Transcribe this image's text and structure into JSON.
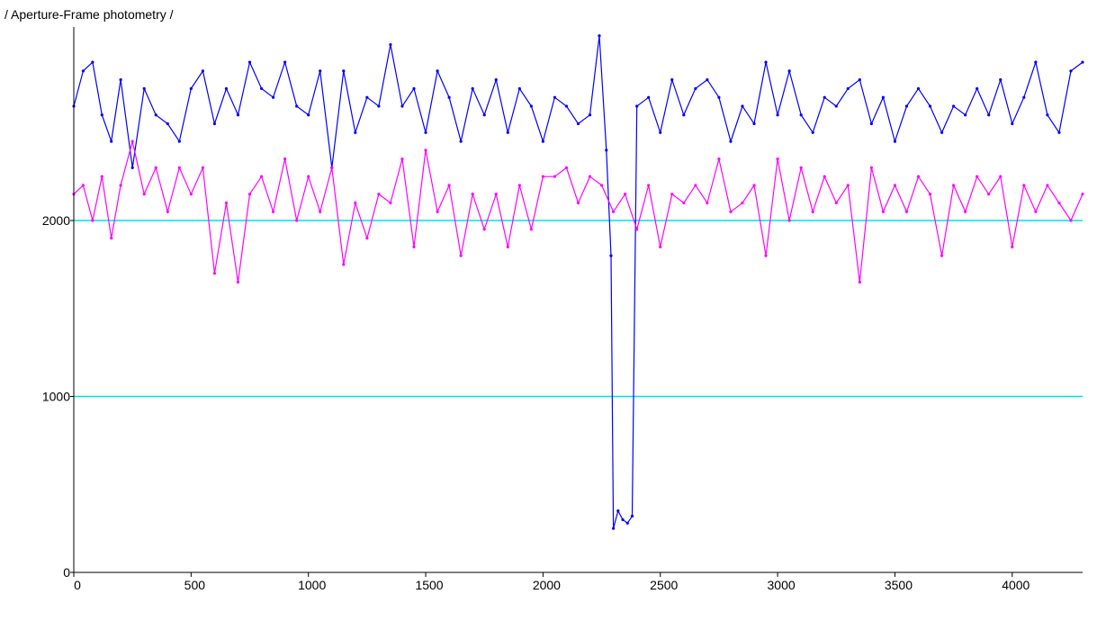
{
  "chart_data": {
    "type": "line",
    "title": "/ Aperture-Frame photometry /",
    "xlabel": "",
    "ylabel": "",
    "xlim": [
      0,
      4300
    ],
    "ylim": [
      0,
      3100
    ],
    "x_ticks": [
      0,
      500,
      1000,
      1500,
      2000,
      2500,
      3000,
      3500,
      4000
    ],
    "y_ticks": [
      0,
      1000,
      2000
    ],
    "reference_lines": [
      {
        "y": 2000,
        "color": "#00e0e0"
      },
      {
        "y": 1000,
        "color": "#00e0e0"
      }
    ],
    "series": [
      {
        "color": "#0000ff",
        "x": [
          0,
          40,
          80,
          120,
          160,
          200,
          250,
          300,
          350,
          400,
          450,
          500,
          550,
          600,
          650,
          700,
          750,
          800,
          850,
          900,
          950,
          1000,
          1050,
          1100,
          1150,
          1200,
          1250,
          1300,
          1350,
          1400,
          1450,
          1500,
          1550,
          1600,
          1650,
          1700,
          1750,
          1800,
          1850,
          1900,
          1950,
          2000,
          2050,
          2100,
          2150,
          2200,
          2240,
          2270,
          2290,
          2300,
          2320,
          2340,
          2360,
          2380,
          2400,
          2450,
          2500,
          2550,
          2600,
          2650,
          2700,
          2750,
          2800,
          2850,
          2900,
          2950,
          3000,
          3050,
          3100,
          3150,
          3200,
          3250,
          3300,
          3350,
          3400,
          3450,
          3500,
          3550,
          3600,
          3650,
          3700,
          3750,
          3800,
          3850,
          3900,
          3950,
          4000,
          4050,
          4100,
          4150,
          4200,
          4250,
          4300
        ],
        "y": [
          2650,
          2850,
          2900,
          2600,
          2450,
          2800,
          2300,
          2750,
          2600,
          2550,
          2450,
          2750,
          2850,
          2550,
          2750,
          2600,
          2900,
          2750,
          2700,
          2900,
          2650,
          2600,
          2850,
          2300,
          2850,
          2500,
          2700,
          2650,
          3000,
          2650,
          2750,
          2500,
          2850,
          2700,
          2450,
          2750,
          2600,
          2800,
          2500,
          2750,
          2650,
          2450,
          2700,
          2650,
          2550,
          2600,
          3050,
          2400,
          1800,
          250,
          350,
          300,
          280,
          320,
          2650,
          2700,
          2500,
          2800,
          2600,
          2750,
          2800,
          2700,
          2450,
          2650,
          2550,
          2900,
          2600,
          2850,
          2600,
          2500,
          2700,
          2650,
          2750,
          2800,
          2550,
          2700,
          2450,
          2650,
          2750,
          2650,
          2500,
          2650,
          2600,
          2750,
          2600,
          2800,
          2550,
          2700,
          2900,
          2600,
          2500,
          2850,
          2900
        ]
      },
      {
        "color": "#ff00ff",
        "x": [
          0,
          40,
          80,
          120,
          160,
          200,
          250,
          300,
          350,
          400,
          450,
          500,
          550,
          600,
          650,
          700,
          750,
          800,
          850,
          900,
          950,
          1000,
          1050,
          1100,
          1150,
          1200,
          1250,
          1300,
          1350,
          1400,
          1450,
          1500,
          1550,
          1600,
          1650,
          1700,
          1750,
          1800,
          1850,
          1900,
          1950,
          2000,
          2050,
          2100,
          2150,
          2200,
          2250,
          2300,
          2350,
          2400,
          2450,
          2500,
          2550,
          2600,
          2650,
          2700,
          2750,
          2800,
          2850,
          2900,
          2950,
          3000,
          3050,
          3100,
          3150,
          3200,
          3250,
          3300,
          3350,
          3400,
          3450,
          3500,
          3550,
          3600,
          3650,
          3700,
          3750,
          3800,
          3850,
          3900,
          3950,
          4000,
          4050,
          4100,
          4150,
          4200,
          4250,
          4300
        ],
        "y": [
          2150,
          2200,
          2000,
          2250,
          1900,
          2200,
          2450,
          2150,
          2300,
          2050,
          2300,
          2150,
          2300,
          1700,
          2100,
          1650,
          2150,
          2250,
          2050,
          2350,
          2000,
          2250,
          2050,
          2300,
          1750,
          2100,
          1900,
          2150,
          2100,
          2350,
          1850,
          2400,
          2050,
          2200,
          1800,
          2150,
          1950,
          2150,
          1850,
          2200,
          1950,
          2250,
          2250,
          2300,
          2100,
          2250,
          2200,
          2050,
          2150,
          1950,
          2200,
          1850,
          2150,
          2100,
          2200,
          2100,
          2350,
          2050,
          2100,
          2200,
          1800,
          2350,
          2000,
          2300,
          2050,
          2250,
          2100,
          2200,
          1650,
          2300,
          2050,
          2200,
          2050,
          2250,
          2150,
          1800,
          2200,
          2050,
          2250,
          2150,
          2250,
          1850,
          2200,
          2050,
          2200,
          2100,
          2000,
          2150
        ]
      }
    ]
  }
}
